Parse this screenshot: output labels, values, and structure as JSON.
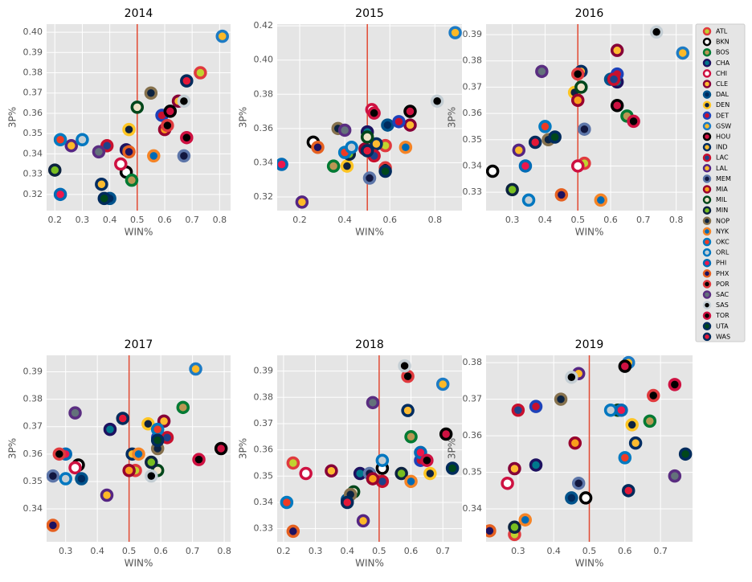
{
  "legend": {
    "teams": [
      {
        "name": "ATL",
        "color": "#e03a3e",
        "fill": "#c1d32f"
      },
      {
        "name": "BKN",
        "color": "#000000",
        "fill": "#ffffff"
      },
      {
        "name": "BOS",
        "color": "#007a33",
        "fill": "#ba9653"
      },
      {
        "name": "CHA",
        "color": "#1d1160",
        "fill": "#00788c"
      },
      {
        "name": "CHI",
        "color": "#ce1141",
        "fill": "#ffffff"
      },
      {
        "name": "CLE",
        "color": "#860038",
        "fill": "#fdbb30"
      },
      {
        "name": "DAL",
        "color": "#00538c",
        "fill": "#002b5e"
      },
      {
        "name": "DEN",
        "color": "#fec524",
        "fill": "#0e2240"
      },
      {
        "name": "DET",
        "color": "#1d42ba",
        "fill": "#c8102e"
      },
      {
        "name": "GSW",
        "color": "#1d7bc4",
        "fill": "#fdb927"
      },
      {
        "name": "HOU",
        "color": "#000000",
        "fill": "#ce1141"
      },
      {
        "name": "IND",
        "color": "#002d62",
        "fill": "#fdbb30"
      },
      {
        "name": "LAC",
        "color": "#c8102e",
        "fill": "#1d428a"
      },
      {
        "name": "LAL",
        "color": "#552583",
        "fill": "#fdb927"
      },
      {
        "name": "MEM",
        "color": "#5d76a9",
        "fill": "#12173f"
      },
      {
        "name": "MIA",
        "color": "#98002e",
        "fill": "#f9a01b"
      },
      {
        "name": "MIL",
        "color": "#00471b",
        "fill": "#eee1c6"
      },
      {
        "name": "MIN",
        "color": "#0c2340",
        "fill": "#78be20"
      },
      {
        "name": "NOP",
        "color": "#85714d",
        "fill": "#0c2340"
      },
      {
        "name": "NYK",
        "color": "#f58426",
        "fill": "#006bb6"
      },
      {
        "name": "OKC",
        "color": "#007ac1",
        "fill": "#ef3b24"
      },
      {
        "name": "ORL",
        "color": "#0077c0",
        "fill": "#c4ced4"
      },
      {
        "name": "PHI",
        "color": "#006bb6",
        "fill": "#ed174c"
      },
      {
        "name": "PHX",
        "color": "#e56020",
        "fill": "#1d1160"
      },
      {
        "name": "POR",
        "color": "#e03a3e",
        "fill": "#000000"
      },
      {
        "name": "SAC",
        "color": "#5a2d81",
        "fill": "#63727a"
      },
      {
        "name": "SAS",
        "color": "#c4ced4",
        "fill": "#000000"
      },
      {
        "name": "TOR",
        "color": "#ce1141",
        "fill": "#000000"
      },
      {
        "name": "UTA",
        "color": "#002b5c",
        "fill": "#00471b"
      },
      {
        "name": "WAS",
        "color": "#002b5c",
        "fill": "#e31837"
      }
    ]
  },
  "chart_data": [
    {
      "type": "scatter",
      "title": "2014",
      "x_label": "WIN%",
      "y_label": "3P%",
      "vline": 0.5,
      "vline_color": "#e24a33",
      "xlim": [
        0.17,
        0.84
      ],
      "ylim": [
        0.312,
        0.404
      ],
      "xticks": [
        0.2,
        0.3,
        0.4,
        0.5,
        0.6,
        0.7,
        0.8
      ],
      "yticks": [
        0.32,
        0.33,
        0.34,
        0.35,
        0.36,
        0.37,
        0.38,
        0.39,
        {
          "value": 0.4,
          "label": "0.40"
        }
      ],
      "x": [
        0.73,
        0.46,
        0.48,
        0.46,
        0.44,
        0.65,
        0.4,
        0.47,
        0.59,
        0.81,
        0.62,
        0.37,
        0.39,
        0.26,
        0.67,
        0.6,
        0.5,
        0.2,
        0.55,
        0.56,
        0.22,
        0.3,
        0.22,
        0.47,
        0.61,
        0.36,
        0.67,
        0.68,
        0.38,
        0.68
      ],
      "values": [
        0.38,
        0.331,
        0.327,
        0.342,
        0.335,
        0.366,
        0.318,
        0.352,
        0.359,
        0.398,
        0.361,
        0.325,
        0.344,
        0.344,
        0.339,
        0.352,
        0.363,
        0.332,
        0.37,
        0.339,
        0.347,
        0.347,
        0.32,
        0.341,
        0.354,
        0.341,
        0.366,
        0.348,
        0.318,
        0.376
      ]
    },
    {
      "type": "scatter",
      "title": "2015",
      "x_label": "WIN%",
      "y_label": "3P%",
      "vline": 0.5,
      "vline_color": "#e24a33",
      "xlim": [
        0.1,
        0.92
      ],
      "ylim": [
        0.312,
        0.421
      ],
      "xticks": [
        0.2,
        0.4,
        0.6,
        0.8
      ],
      "yticks": [
        0.32,
        0.34,
        0.36,
        0.38,
        {
          "value": 0.4,
          "label": "0.40"
        },
        0.42
      ],
      "x": [
        0.58,
        0.26,
        0.35,
        0.5,
        0.52,
        0.69,
        0.59,
        0.41,
        0.64,
        0.89,
        0.69,
        0.54,
        0.53,
        0.21,
        0.51,
        0.49,
        0.5,
        0.42,
        0.37,
        0.67,
        0.4,
        0.43,
        0.12,
        0.28,
        0.58,
        0.4,
        0.81,
        0.53,
        0.58,
        0.5
      ],
      "values": [
        0.35,
        0.352,
        0.338,
        0.358,
        0.371,
        0.362,
        0.362,
        0.338,
        0.364,
        0.416,
        0.37,
        0.351,
        0.344,
        0.317,
        0.331,
        0.348,
        0.355,
        0.345,
        0.36,
        0.349,
        0.346,
        0.349,
        0.339,
        0.349,
        0.337,
        0.359,
        0.376,
        0.369,
        0.335,
        0.347
      ]
    },
    {
      "type": "scatter",
      "title": "2016",
      "x_label": "WIN%",
      "y_label": "3P%",
      "vline": 0.5,
      "vline_color": "#e24a33",
      "xlim": [
        0.22,
        0.85
      ],
      "ylim": [
        0.323,
        0.394
      ],
      "xticks": [
        0.3,
        0.4,
        0.5,
        0.6,
        0.7,
        0.8
      ],
      "yticks": [
        0.33,
        0.34,
        0.35,
        0.36,
        0.37,
        0.38,
        0.39
      ],
      "x": [
        0.52,
        0.24,
        0.65,
        0.62,
        0.5,
        0.62,
        0.6,
        0.49,
        0.62,
        0.82,
        0.62,
        0.51,
        0.61,
        0.32,
        0.52,
        0.5,
        0.51,
        0.3,
        0.41,
        0.57,
        0.4,
        0.35,
        0.34,
        0.45,
        0.5,
        0.39,
        0.74,
        0.67,
        0.43,
        0.37
      ],
      "values": [
        0.341,
        0.338,
        0.359,
        0.372,
        0.34,
        0.384,
        0.373,
        0.368,
        0.375,
        0.383,
        0.363,
        0.376,
        0.373,
        0.346,
        0.354,
        0.365,
        0.37,
        0.331,
        0.35,
        0.327,
        0.355,
        0.327,
        0.34,
        0.329,
        0.375,
        0.376,
        0.391,
        0.357,
        0.351,
        0.349
      ]
    },
    {
      "type": "scatter",
      "title": "2017",
      "x_label": "WIN%",
      "y_label": "3P%",
      "vline": 0.5,
      "vline_color": "#e24a33",
      "xlim": [
        0.24,
        0.82
      ],
      "ylim": [
        0.328,
        0.396
      ],
      "xticks": [
        0.3,
        0.4,
        0.5,
        0.6,
        0.7,
        0.8
      ],
      "yticks": [
        0.34,
        0.35,
        0.36,
        0.37,
        0.38,
        0.39
      ],
      "x": [
        0.52,
        0.34,
        0.67,
        0.44,
        0.33,
        0.61,
        0.35,
        0.56,
        0.59,
        0.71,
        0.79,
        0.51,
        0.62,
        0.43,
        0.26,
        0.5,
        0.59,
        0.57,
        0.59,
        0.53,
        0.59,
        0.3,
        0.3,
        0.26,
        0.28,
        0.33,
        0.57,
        0.72,
        0.59,
        0.48
      ],
      "values": [
        0.354,
        0.356,
        0.377,
        0.369,
        0.355,
        0.372,
        0.351,
        0.371,
        0.366,
        0.391,
        0.362,
        0.36,
        0.366,
        0.345,
        0.352,
        0.354,
        0.354,
        0.357,
        0.362,
        0.36,
        0.369,
        0.351,
        0.36,
        0.334,
        0.36,
        0.375,
        0.352,
        0.358,
        0.365,
        0.373
      ]
    },
    {
      "type": "scatter",
      "title": "2018",
      "x_label": "WIN%",
      "y_label": "3P%",
      "vline": 0.5,
      "vline_color": "#e24a33",
      "xlim": [
        0.18,
        0.76
      ],
      "ylim": [
        0.325,
        0.396
      ],
      "xticks": [
        0.2,
        0.3,
        0.4,
        0.5,
        0.6,
        0.7
      ],
      "yticks": [
        0.33,
        0.34,
        0.35,
        0.36,
        0.37,
        0.38,
        0.39
      ],
      "x": [
        0.23,
        0.51,
        0.6,
        0.44,
        0.27,
        0.35,
        0.4,
        0.66,
        0.63,
        0.7,
        0.71,
        0.59,
        0.51,
        0.45,
        0.47,
        0.48,
        0.42,
        0.57,
        0.41,
        0.6,
        0.21,
        0.51,
        0.63,
        0.23,
        0.59,
        0.48,
        0.58,
        0.65,
        0.73,
        0.4
      ],
      "values": [
        0.355,
        0.353,
        0.365,
        0.351,
        0.351,
        0.352,
        0.341,
        0.351,
        0.356,
        0.385,
        0.366,
        0.375,
        0.348,
        0.333,
        0.351,
        0.349,
        0.344,
        0.351,
        0.343,
        0.348,
        0.34,
        0.356,
        0.359,
        0.329,
        0.388,
        0.378,
        0.392,
        0.356,
        0.353,
        0.34
      ]
    },
    {
      "type": "scatter",
      "title": "2019",
      "x_label": "WIN%",
      "y_label": "3P%",
      "vline": 0.5,
      "vline_color": "#e24a33",
      "xlim": [
        0.21,
        0.79
      ],
      "ylim": [
        0.331,
        0.382
      ],
      "xticks": [
        0.3,
        0.4,
        0.5,
        0.6,
        0.7
      ],
      "yticks": [
        0.34,
        0.35,
        0.36,
        0.37,
        0.38
      ],
      "x": [
        0.29,
        0.49,
        0.67,
        0.35,
        0.27,
        0.29,
        0.45,
        0.62,
        0.35,
        0.61,
        0.6,
        0.63,
        0.3,
        0.47,
        0.47,
        0.46,
        0.58,
        0.29,
        0.42,
        0.32,
        0.6,
        0.56,
        0.59,
        0.22,
        0.68,
        0.74,
        0.45,
        0.74,
        0.77,
        0.61
      ],
      "values": [
        0.333,
        0.343,
        0.364,
        0.352,
        0.347,
        0.351,
        0.343,
        0.363,
        0.368,
        0.38,
        0.379,
        0.358,
        0.367,
        0.377,
        0.347,
        0.358,
        0.367,
        0.335,
        0.37,
        0.337,
        0.354,
        0.367,
        0.367,
        0.334,
        0.371,
        0.349,
        0.376,
        0.374,
        0.355,
        0.345
      ]
    }
  ]
}
